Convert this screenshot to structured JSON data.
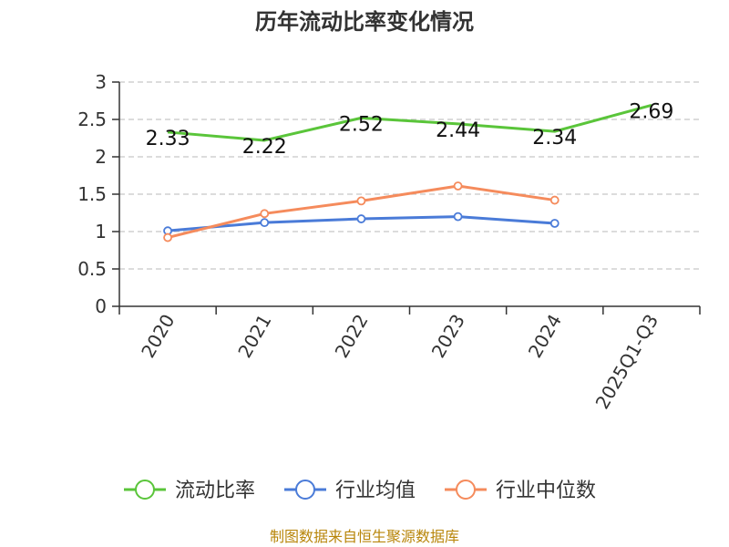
{
  "chart_data": {
    "type": "line",
    "title": "历年流动比率变化情况",
    "categories": [
      "2020",
      "2021",
      "2022",
      "2023",
      "2024",
      "2025Q1-Q3"
    ],
    "ylim": [
      0,
      3
    ],
    "yticks": [
      "0",
      "0.5",
      "1",
      "1.5",
      "2",
      "2.5",
      "3"
    ],
    "grid": true,
    "legend_position": "bottom",
    "series": [
      {
        "name": "流动比率",
        "color": "#5ac53a",
        "values": [
          2.33,
          2.22,
          2.52,
          2.44,
          2.34,
          2.69
        ],
        "labels": [
          "2.33",
          "2.22",
          "2.52",
          "2.44",
          "2.34",
          "2.69"
        ]
      },
      {
        "name": "行业均值",
        "color": "#4a7bd8",
        "values": [
          1.01,
          1.12,
          1.17,
          1.2,
          1.11,
          null
        ]
      },
      {
        "name": "行业中位数",
        "color": "#f58b5c",
        "values": [
          0.92,
          1.24,
          1.41,
          1.61,
          1.42,
          null
        ]
      }
    ]
  },
  "footer": {
    "source": "制图数据来自恒生聚源数据库"
  }
}
